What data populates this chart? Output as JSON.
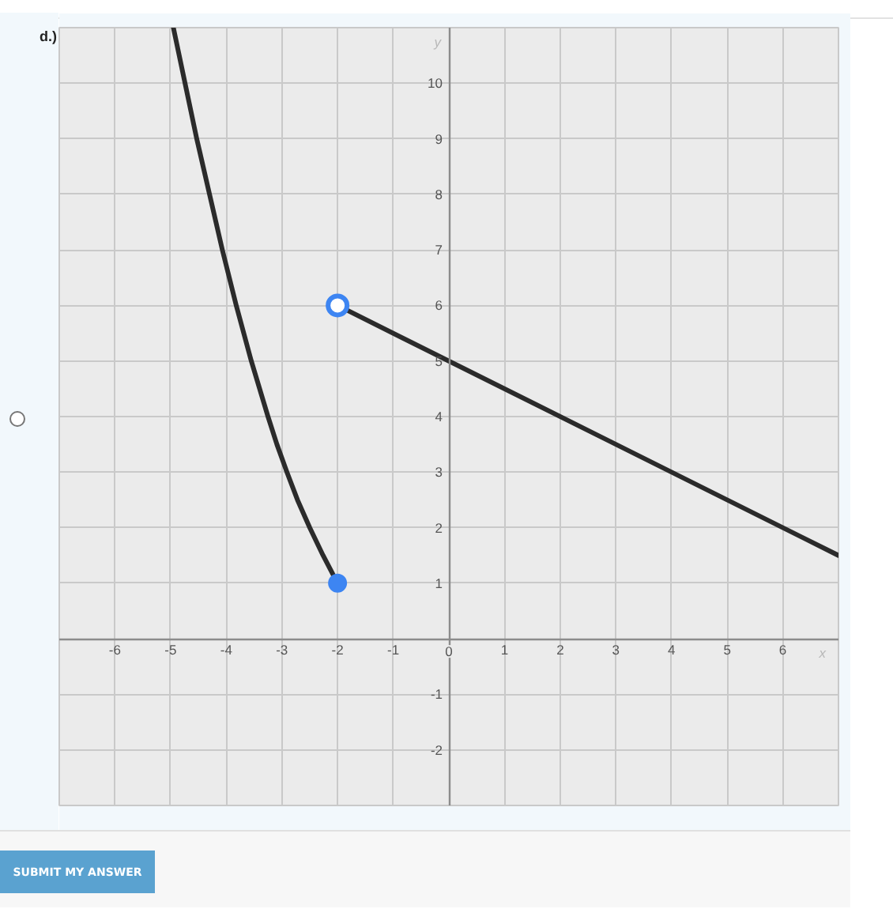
{
  "chart_data": {
    "type": "line",
    "title": "d.)",
    "xlabel": "x",
    "ylabel": "y",
    "annotations": [
      "SUBMIT MY ANSWER"
    ],
    "xlim": [
      -7,
      7
    ],
    "ylim": [
      -3,
      11
    ],
    "xticks": [
      -6,
      -5,
      -4,
      -3,
      -2,
      -1,
      0,
      1,
      2,
      3,
      4,
      5,
      6
    ],
    "yticks": [
      -2,
      -1,
      1,
      2,
      3,
      4,
      5,
      6,
      7,
      8,
      9,
      10
    ],
    "grid": true,
    "series": [
      {
        "color": "#2b2b2b",
        "x": [
          -2,
          -2.26,
          -2.5,
          -2.72,
          -2.91,
          -3.09,
          -3.25,
          -3.55,
          -3.82,
          -4.07,
          -4.3,
          -4.53,
          -4.74,
          -4.95
        ],
        "values": [
          1,
          1.5,
          2,
          2.5,
          3,
          3.5,
          4,
          5,
          6,
          7,
          8,
          9,
          10,
          11
        ]
      },
      {
        "color": "#2b2b2b",
        "x": [
          -2,
          7
        ],
        "values": [
          6,
          1.5
        ]
      },
      {
        "type": "scatter",
        "color": "#3d85f2",
        "marker": "circle",
        "x": [
          -2
        ],
        "values": [
          1
        ]
      },
      {
        "type": "scatter",
        "color": "#3d85f2",
        "marker": "circle-open",
        "x": [
          -2
        ],
        "values": [
          6
        ]
      }
    ]
  }
}
